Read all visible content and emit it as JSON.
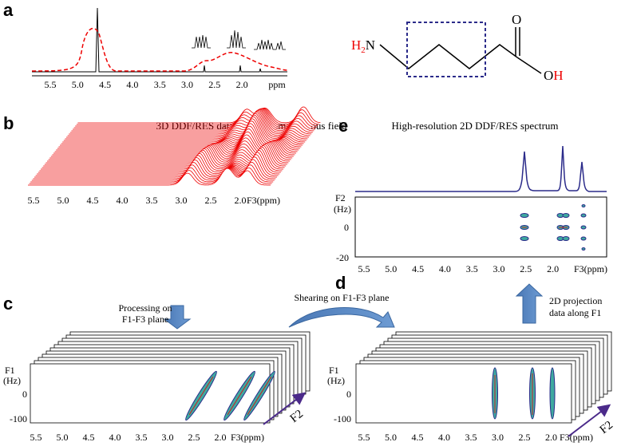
{
  "panel_a": {
    "label": "a",
    "xticks": [
      "5.5",
      "5.0",
      "4.5",
      "4.0",
      "3.5",
      "3.0",
      "2.5",
      "2.0"
    ],
    "unit": "ppm",
    "molecule": {
      "amine_h": "H",
      "amine_sub": "2",
      "amine_n": "N",
      "carbonyl_o": "O",
      "hydroxyl_o": "O",
      "hydroxyl_h": "H"
    }
  },
  "panel_b": {
    "label": "b",
    "title": "3D DDF/RES data in an inhomogeneous field",
    "xticks": [
      "5.5",
      "5.0",
      "4.5",
      "4.0",
      "3.5",
      "3.0",
      "2.5",
      "2.0"
    ],
    "unit": "F3(ppm)"
  },
  "panel_c": {
    "label": "c",
    "xticks": [
      "5.5",
      "5.0",
      "4.5",
      "4.0",
      "3.5",
      "3.0",
      "2.5",
      "2.0"
    ],
    "unit": "F3(ppm)",
    "y_axis_label": [
      "F1",
      "(Hz)"
    ],
    "yticks": [
      "0",
      "-100"
    ],
    "depth_label": "F2",
    "processing_note": [
      "Processing on",
      "F1-F3 plane"
    ]
  },
  "shearing_note": "Shearing on F1-F3 plane",
  "panel_d": {
    "label": "d",
    "xticks": [
      "5.5",
      "5.0",
      "4.5",
      "4.0",
      "3.5",
      "3.0",
      "2.5",
      "2.0"
    ],
    "unit": "F3(ppm)",
    "y_axis_label": [
      "F1",
      "(Hz)"
    ],
    "yticks": [
      "0",
      "-100"
    ],
    "depth_label": "F2",
    "projection_note": [
      "2D projection",
      "data along F1"
    ]
  },
  "panel_e": {
    "label": "e",
    "title": "High-resolution 2D DDF/RES spectrum",
    "xticks": [
      "5.5",
      "5.0",
      "4.5",
      "4.0",
      "3.5",
      "3.0",
      "2.5",
      "2.0"
    ],
    "unit": "F3(ppm)",
    "y_axis_label": [
      "F2",
      "(Hz)"
    ],
    "yticks": [
      "0",
      "-20"
    ]
  }
}
